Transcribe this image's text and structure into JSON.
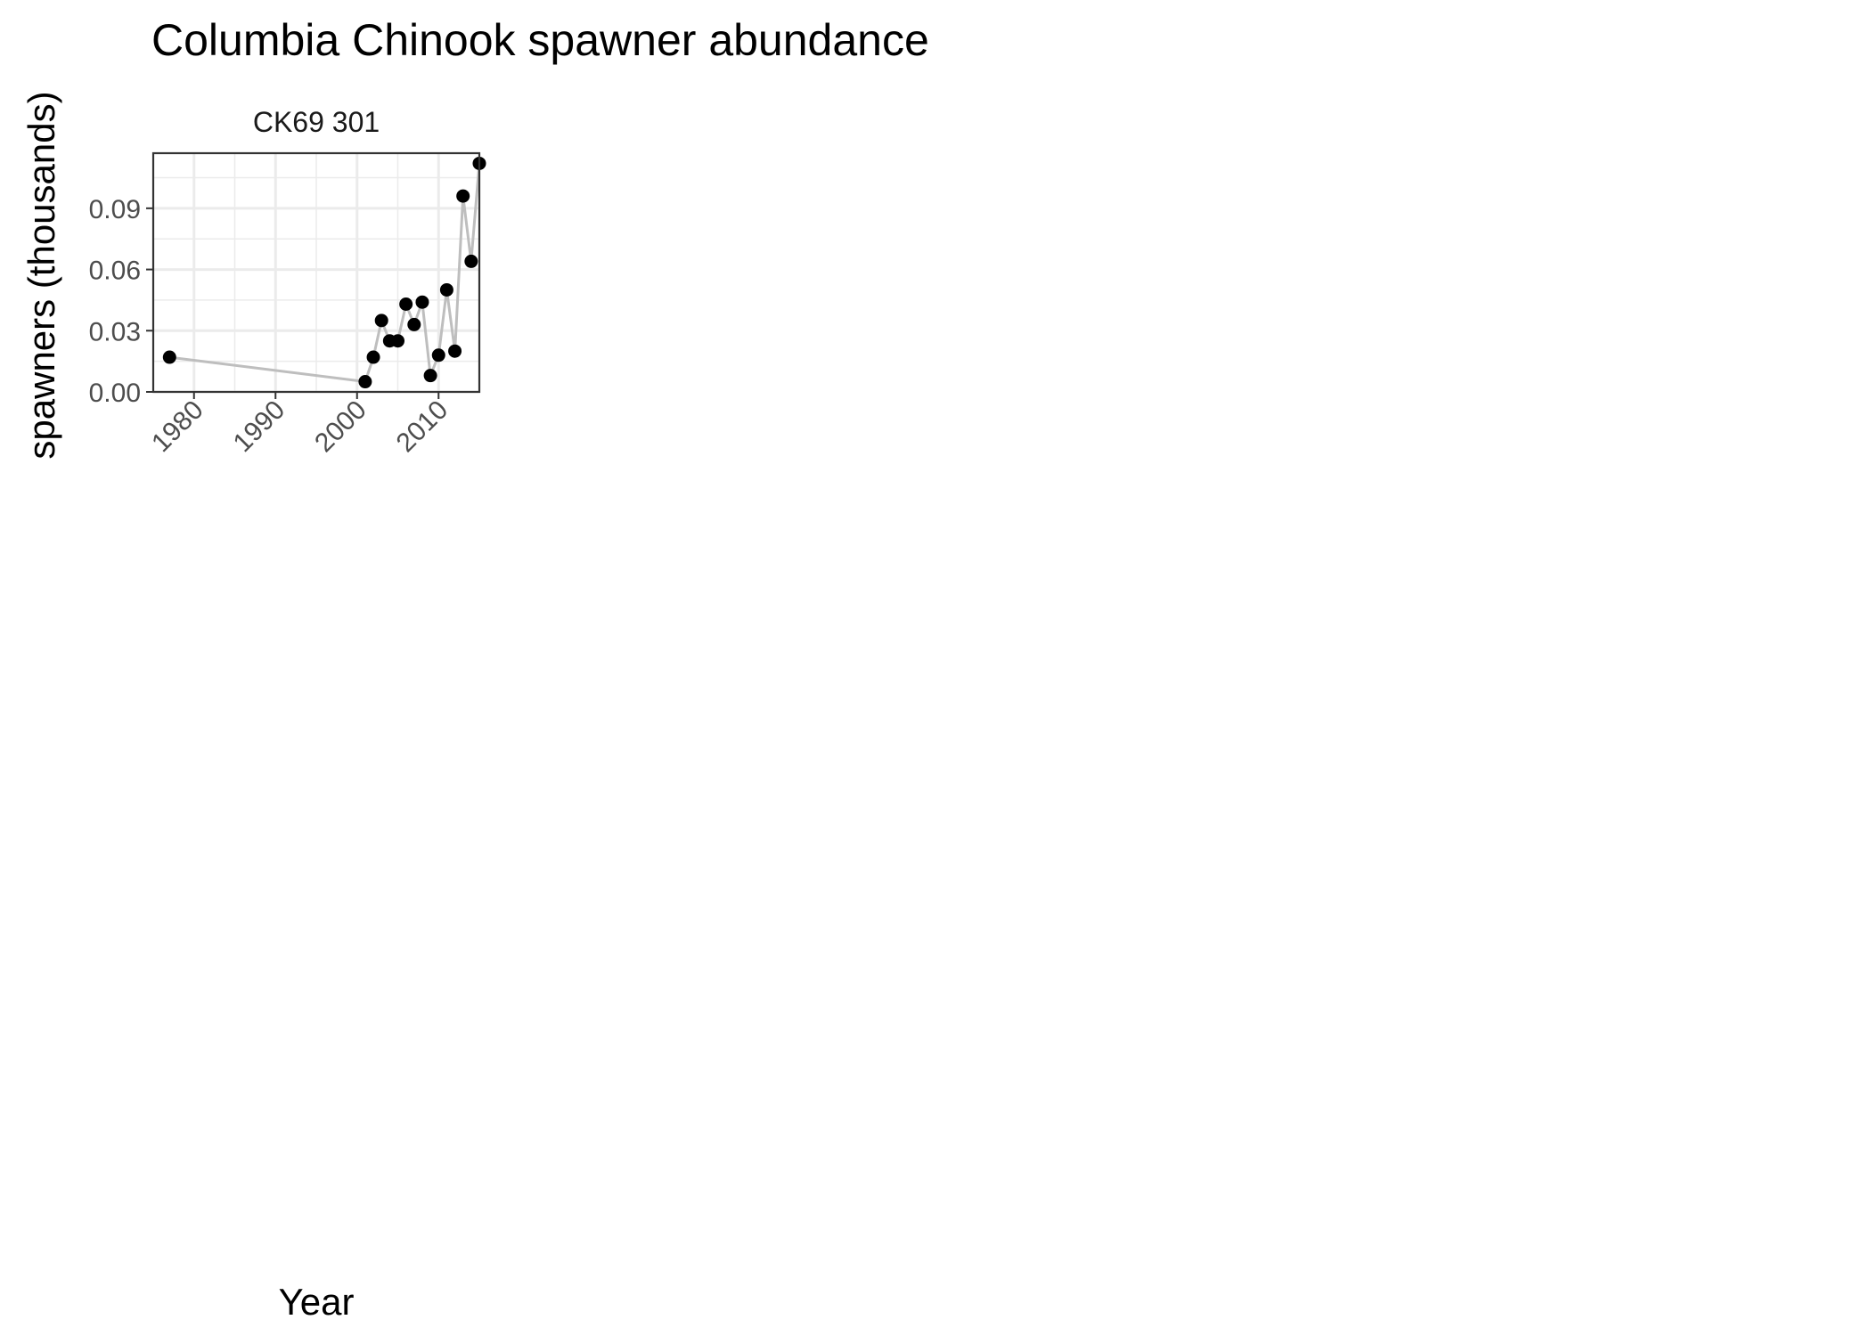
{
  "chart_data": {
    "type": "line",
    "title": "Columbia Chinook spawner abundance",
    "xlabel": "Year",
    "ylabel": "spawners (thousands)",
    "panels": [
      {
        "label": "CK69 301",
        "xlim": [
          1975,
          2015
        ],
        "ylim": [
          0,
          0.117
        ],
        "x_ticks": [
          1980,
          1990,
          2000,
          2010
        ],
        "y_ticks": [
          0.0,
          0.03,
          0.06,
          0.09
        ],
        "y_tick_labels": [
          "0.00",
          "0.03",
          "0.06",
          "0.09"
        ],
        "grid": true,
        "series": [
          {
            "x": [
              1977,
              2001,
              2002,
              2003,
              2004,
              2005,
              2006,
              2007,
              2008,
              2009,
              2010,
              2011,
              2012,
              2013,
              2014,
              2015
            ],
            "y": [
              0.017,
              0.005,
              0.017,
              0.035,
              0.025,
              0.025,
              0.043,
              0.033,
              0.044,
              0.008,
              0.018,
              0.05,
              0.02,
              0.096,
              0.064,
              0.112
            ]
          }
        ]
      }
    ],
    "colors": {
      "line": "#bebebe",
      "points": "#000000",
      "grid": "#ebebeb",
      "panel_border": "#333333"
    }
  }
}
